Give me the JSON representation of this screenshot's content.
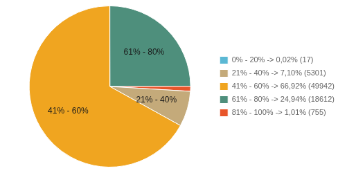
{
  "chart_data": {
    "type": "pie",
    "categories": [
      "61% - 80% -> 24,94% (18612)",
      "81% - 100% -> 1,01% (755)",
      "21% - 40% -> 7,10% (5301)",
      "41% - 60% -> 66,92% (49942)",
      "0% - 20% -> 0,02% (17)"
    ],
    "values": [
      24.94,
      1.01,
      7.1,
      66.92,
      0.02
    ],
    "colors": [
      "#4e8f7c",
      "#e8552a",
      "#c4aa7a",
      "#f0a520",
      "#5bb8d4"
    ],
    "annotations": [
      "61% - 80%",
      null,
      "21% - 40%",
      "41% - 60%",
      null
    ],
    "legend": "right"
  }
}
